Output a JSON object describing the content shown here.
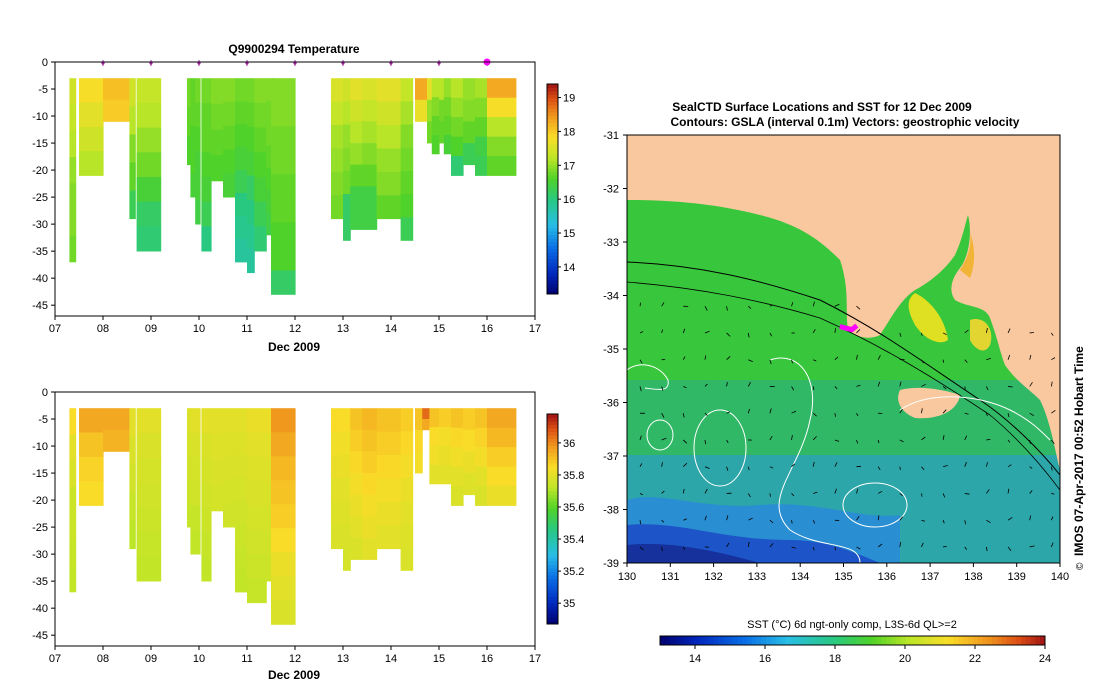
{
  "charts": {
    "temperature": {
      "type": "heatmap",
      "title": "Q9900294  Temperature",
      "xlabel": "Dec 2009",
      "x_ticks": [
        "07",
        "08",
        "09",
        "10",
        "11",
        "12",
        "13",
        "14",
        "15",
        "16",
        "17"
      ],
      "xlim": [
        7,
        17
      ],
      "ylim": [
        -47,
        0
      ],
      "y_ticks": [
        0,
        -5,
        -10,
        -15,
        -20,
        -25,
        -30,
        -35,
        -40,
        -45
      ],
      "colorbar": {
        "min": 13.2,
        "max": 19.4,
        "ticks": [
          14,
          15,
          16,
          17,
          18,
          19
        ]
      },
      "surface_markers": [
        8,
        9,
        10,
        11,
        12,
        13,
        14,
        15,
        16
      ],
      "highlight_marker": 16,
      "profiles": [
        {
          "x": 7.3,
          "w": 0.13,
          "depth": 37,
          "t": [
            17.4,
            17.3,
            17.2,
            17.0,
            16.9,
            16.9,
            16.8
          ]
        },
        {
          "x": 7.5,
          "w": 0.5,
          "depth": 21,
          "t": [
            17.8,
            17.6,
            17.4,
            17.2
          ]
        },
        {
          "x": 8.0,
          "w": 0.55,
          "depth": 11,
          "t": [
            18.1,
            18.0
          ]
        },
        {
          "x": 8.55,
          "w": 0.12,
          "depth": 29,
          "t": [
            17.4,
            17.2,
            16.9,
            16.7,
            16.3
          ]
        },
        {
          "x": 8.7,
          "w": 0.5,
          "depth": 35,
          "t": [
            17.3,
            17.2,
            17.0,
            16.8,
            16.5,
            16.2,
            16.1
          ]
        },
        {
          "x": 9.75,
          "w": 0.07,
          "depth": 19,
          "t": [
            16.8,
            16.7,
            16.6
          ]
        },
        {
          "x": 9.82,
          "w": 0.1,
          "depth": 25,
          "t": [
            16.7,
            16.7,
            16.6,
            16.6,
            16.5
          ]
        },
        {
          "x": 9.92,
          "w": 0.1,
          "depth": 30,
          "t": [
            16.8,
            16.7,
            16.6,
            16.5,
            16.5,
            16.4
          ]
        },
        {
          "x": 10.05,
          "w": 0.2,
          "depth": 35,
          "t": [
            16.8,
            16.7,
            16.7,
            16.6,
            16.5,
            16.3,
            16.0
          ]
        },
        {
          "x": 10.25,
          "w": 0.25,
          "depth": 22,
          "t": [
            16.9,
            16.8,
            16.7,
            16.6
          ]
        },
        {
          "x": 10.5,
          "w": 0.25,
          "depth": 25,
          "t": [
            16.9,
            16.8,
            16.7,
            16.6,
            16.5
          ]
        },
        {
          "x": 10.75,
          "w": 0.25,
          "depth": 37,
          "t": [
            16.8,
            16.7,
            16.6,
            16.5,
            16.3,
            16.0,
            15.9,
            15.8
          ]
        },
        {
          "x": 11.0,
          "w": 0.15,
          "depth": 39,
          "t": [
            16.8,
            16.7,
            16.6,
            16.5,
            16.2,
            16.0,
            15.9,
            15.8
          ]
        },
        {
          "x": 11.15,
          "w": 0.25,
          "depth": 35,
          "t": [
            16.9,
            16.8,
            16.7,
            16.6,
            16.5,
            16.3,
            16.1
          ]
        },
        {
          "x": 11.4,
          "w": 0.15,
          "depth": 32,
          "t": [
            16.9,
            16.8,
            16.8,
            16.7,
            16.6,
            16.5,
            16.4
          ]
        },
        {
          "x": 11.5,
          "w": 0.5,
          "depth": 43,
          "t": [
            16.9,
            16.9,
            16.8,
            16.8,
            16.7,
            16.7,
            16.6,
            16.6,
            16.2
          ]
        },
        {
          "x": 12.75,
          "w": 0.25,
          "depth": 29,
          "t": [
            17.5,
            17.3,
            17.1,
            17.0,
            16.9,
            16.8
          ]
        },
        {
          "x": 13.0,
          "w": 0.15,
          "depth": 33,
          "t": [
            17.4,
            17.2,
            17.0,
            16.9,
            16.8,
            16.2,
            16.2
          ]
        },
        {
          "x": 13.15,
          "w": 0.25,
          "depth": 31,
          "t": [
            17.6,
            17.4,
            17.2,
            17.0,
            16.7,
            16.4,
            16.4
          ]
        },
        {
          "x": 13.4,
          "w": 0.3,
          "depth": 31,
          "t": [
            17.5,
            17.3,
            17.1,
            16.9,
            16.7,
            16.4,
            16.4
          ]
        },
        {
          "x": 13.7,
          "w": 0.5,
          "depth": 29,
          "t": [
            17.6,
            17.4,
            17.2,
            17.0,
            16.9,
            16.7
          ]
        },
        {
          "x": 14.2,
          "w": 0.25,
          "depth": 33,
          "t": [
            17.3,
            17.1,
            16.9,
            16.8,
            16.7,
            16.6,
            16.3
          ]
        },
        {
          "x": 14.5,
          "w": 0.25,
          "depth": 11,
          "t": [
            18.3,
            17.7
          ]
        },
        {
          "x": 14.75,
          "w": 0.1,
          "depth": 15,
          "t": [
            17.6,
            17.0,
            16.8
          ]
        },
        {
          "x": 14.85,
          "w": 0.15,
          "depth": 17,
          "t": [
            17.2,
            16.9,
            16.7,
            16.6
          ]
        },
        {
          "x": 15.0,
          "w": 0.1,
          "depth": 15,
          "t": [
            17.2,
            16.8,
            16.7
          ]
        },
        {
          "x": 15.1,
          "w": 0.15,
          "depth": 17,
          "t": [
            17.0,
            16.8,
            16.7,
            16.5
          ]
        },
        {
          "x": 15.25,
          "w": 0.25,
          "depth": 21,
          "t": [
            17.2,
            17.0,
            16.8,
            16.6,
            16.1
          ]
        },
        {
          "x": 15.5,
          "w": 0.25,
          "depth": 19,
          "t": [
            17.0,
            16.9,
            16.7,
            16.3
          ]
        },
        {
          "x": 15.75,
          "w": 0.25,
          "depth": 21,
          "t": [
            17.1,
            16.9,
            16.7,
            16.4,
            16.3
          ]
        },
        {
          "x": 16.0,
          "w": 0.6,
          "depth": 21,
          "t": [
            18.3,
            17.8,
            17.2,
            16.9,
            16.7
          ]
        }
      ]
    },
    "salinity": {
      "type": "heatmap",
      "title": "",
      "xlabel": "Dec 2009",
      "x_ticks": [
        "07",
        "08",
        "09",
        "10",
        "11",
        "12",
        "13",
        "14",
        "15",
        "16",
        "17"
      ],
      "xlim": [
        7,
        17
      ],
      "ylim": [
        -47,
        0
      ],
      "y_ticks": [
        0,
        -5,
        -10,
        -15,
        -20,
        -25,
        -30,
        -35,
        -40,
        -45
      ],
      "colorbar": {
        "min": 34.87,
        "max": 36.18,
        "ticks": [
          35,
          35.2,
          35.4,
          35.6,
          35.8,
          36
        ]
      },
      "profiles": [
        {
          "x": 7.3,
          "w": 0.13,
          "depth": 37,
          "t": [
            35.85,
            35.8,
            35.78,
            35.75,
            35.75,
            35.74,
            35.73
          ]
        },
        {
          "x": 7.5,
          "w": 0.5,
          "depth": 21,
          "t": [
            35.95,
            35.9,
            35.87,
            35.85
          ]
        },
        {
          "x": 8.0,
          "w": 0.55,
          "depth": 11,
          "t": [
            35.95,
            35.93
          ]
        },
        {
          "x": 8.55,
          "w": 0.12,
          "depth": 29,
          "t": [
            35.8,
            35.78,
            35.76,
            35.74,
            35.72
          ]
        },
        {
          "x": 8.7,
          "w": 0.5,
          "depth": 35,
          "t": [
            35.8,
            35.78,
            35.77,
            35.76,
            35.75,
            35.74,
            35.73
          ]
        },
        {
          "x": 9.75,
          "w": 0.07,
          "depth": 25,
          "t": [
            35.78,
            35.77,
            35.76,
            35.75,
            35.74
          ]
        },
        {
          "x": 9.82,
          "w": 0.2,
          "depth": 30,
          "t": [
            35.8,
            35.78,
            35.77,
            35.76,
            35.74,
            35.73
          ]
        },
        {
          "x": 10.05,
          "w": 0.2,
          "depth": 35,
          "t": [
            35.8,
            35.78,
            35.77,
            35.76,
            35.75,
            35.74,
            35.73
          ]
        },
        {
          "x": 10.25,
          "w": 0.25,
          "depth": 22,
          "t": [
            35.8,
            35.79,
            35.78,
            35.77
          ]
        },
        {
          "x": 10.5,
          "w": 0.25,
          "depth": 25,
          "t": [
            35.8,
            35.79,
            35.78,
            35.77,
            35.76
          ]
        },
        {
          "x": 10.75,
          "w": 0.25,
          "depth": 37,
          "t": [
            35.8,
            35.79,
            35.78,
            35.77,
            35.76,
            35.75,
            35.74,
            35.73
          ]
        },
        {
          "x": 11.0,
          "w": 0.4,
          "depth": 39,
          "t": [
            35.82,
            35.8,
            35.79,
            35.78,
            35.77,
            35.76,
            35.75,
            35.74
          ]
        },
        {
          "x": 11.4,
          "w": 0.1,
          "depth": 35,
          "t": [
            35.82,
            35.8,
            35.79,
            35.78,
            35.77,
            35.76,
            35.75
          ]
        },
        {
          "x": 11.5,
          "w": 0.5,
          "depth": 43,
          "t": [
            35.98,
            35.95,
            35.92,
            35.9,
            35.88,
            35.85,
            35.82,
            35.8,
            35.78
          ]
        },
        {
          "x": 12.75,
          "w": 0.25,
          "depth": 29,
          "t": [
            35.85,
            35.83,
            35.82,
            35.8,
            35.79,
            35.78
          ]
        },
        {
          "x": 13.0,
          "w": 0.15,
          "depth": 33,
          "t": [
            35.85,
            35.83,
            35.82,
            35.8,
            35.79,
            35.78,
            35.77
          ]
        },
        {
          "x": 13.15,
          "w": 0.25,
          "depth": 31,
          "t": [
            35.9,
            35.88,
            35.86,
            35.84,
            35.82,
            35.8,
            35.78
          ]
        },
        {
          "x": 13.4,
          "w": 0.3,
          "depth": 31,
          "t": [
            35.92,
            35.9,
            35.88,
            35.86,
            35.84,
            35.82,
            35.8
          ]
        },
        {
          "x": 13.7,
          "w": 0.5,
          "depth": 29,
          "t": [
            35.9,
            35.88,
            35.86,
            35.84,
            35.82,
            35.8
          ]
        },
        {
          "x": 14.2,
          "w": 0.25,
          "depth": 33,
          "t": [
            35.88,
            35.86,
            35.84,
            35.82,
            35.8,
            35.79,
            35.78
          ]
        },
        {
          "x": 14.5,
          "w": 0.15,
          "depth": 15,
          "t": [
            35.9,
            35.86,
            35.84
          ]
        },
        {
          "x": 14.65,
          "w": 0.15,
          "depth": 7,
          "t": [
            36.05,
            35.95
          ]
        },
        {
          "x": 14.8,
          "w": 0.2,
          "depth": 17,
          "t": [
            35.9,
            35.85,
            35.83,
            35.8
          ]
        },
        {
          "x": 15.0,
          "w": 0.25,
          "depth": 17,
          "t": [
            35.88,
            35.84,
            35.82,
            35.8
          ]
        },
        {
          "x": 15.25,
          "w": 0.25,
          "depth": 21,
          "t": [
            35.9,
            35.86,
            35.83,
            35.8,
            35.78
          ]
        },
        {
          "x": 15.5,
          "w": 0.25,
          "depth": 19,
          "t": [
            35.88,
            35.85,
            35.82,
            35.79
          ]
        },
        {
          "x": 15.75,
          "w": 0.25,
          "depth": 21,
          "t": [
            35.9,
            35.87,
            35.84,
            35.8,
            35.78
          ]
        },
        {
          "x": 16.0,
          "w": 0.6,
          "depth": 21,
          "t": [
            35.95,
            35.92,
            35.88,
            35.85,
            35.82
          ]
        }
      ]
    },
    "sst_map": {
      "type": "heatmap",
      "title_line1": "SealCTD Surface Locations and SST for 12 Dec 2009",
      "title_line2": "Contours: GSLA (interval 0.1m) Vectors: geostrophic velocity",
      "xlim": [
        130,
        140
      ],
      "ylim": [
        -39,
        -31
      ],
      "x_ticks": [
        "130",
        "131",
        "132",
        "133",
        "134",
        "135",
        "136",
        "137",
        "138",
        "139",
        "140"
      ],
      "y_ticks": [
        "-31",
        "-32",
        "-33",
        "-34",
        "-35",
        "-36",
        "-37",
        "-38",
        "-39"
      ],
      "land_color": "#f9c89e",
      "track_lon": 135.1,
      "track_lat": -34.6,
      "colorbar": {
        "label": "SST (°C) 6d ngt-only comp, L3S-6d QL>=2",
        "min": 13,
        "max": 24,
        "ticks": [
          "14",
          "16",
          "18",
          "20",
          "22",
          "24"
        ]
      }
    }
  },
  "footer": {
    "copyright_symbol": "©",
    "stamp": "IMOS 07-Apr-2017 00:52 Hobart Time"
  }
}
